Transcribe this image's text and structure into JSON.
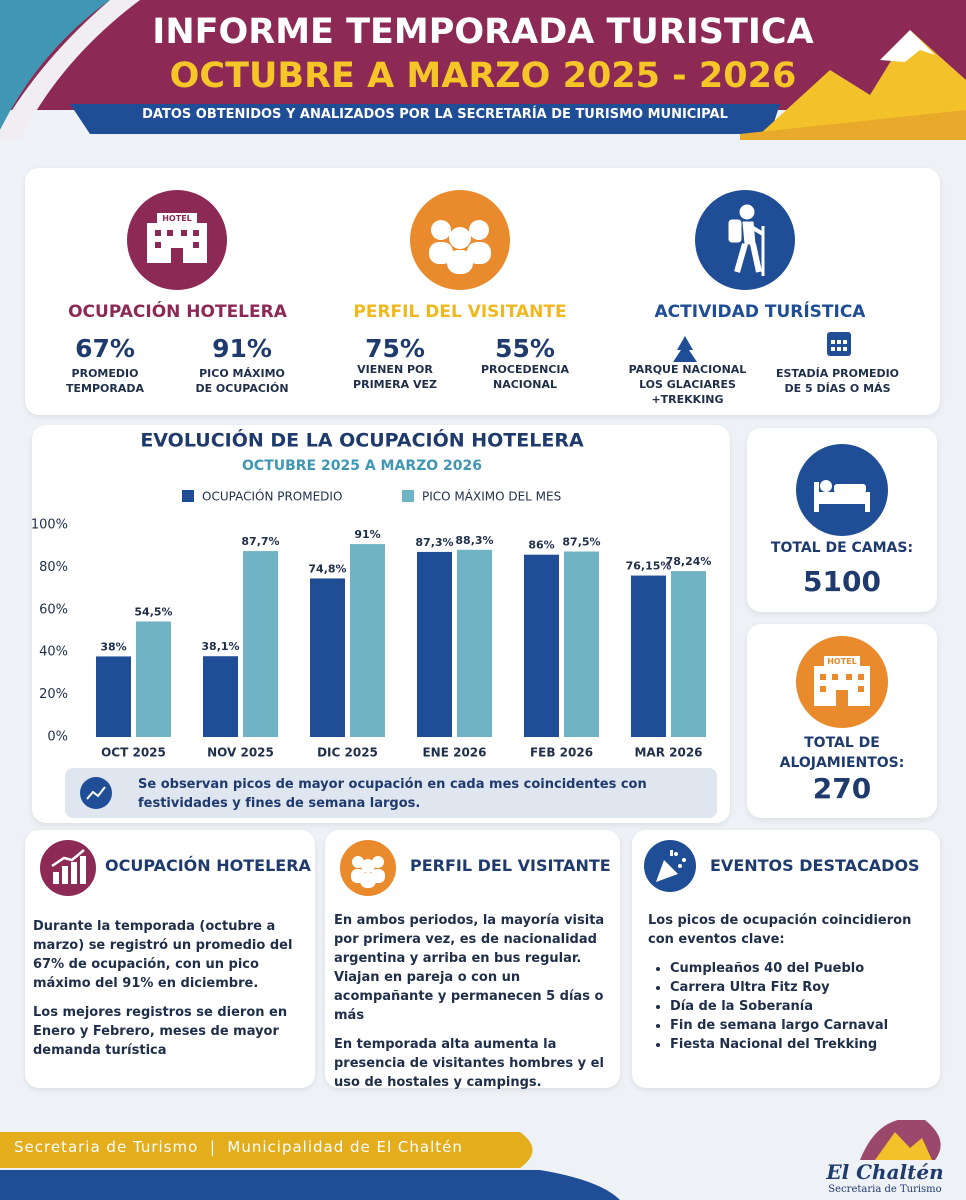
{
  "header": {
    "title": "INFORME TEMPORADA TURISTICA",
    "subtitle": "OCTUBRE A MARZO 2025 - 2026",
    "source": "DATOS OBTENIDOS Y ANALIZADOS POR LA SECRETARÍA DE TURISMO MUNICIPAL"
  },
  "icon_hotel_label": "HOTEL",
  "summary": [
    {
      "title": "OCUPACIÓN HOTELERA",
      "stats": [
        {
          "value": "67%",
          "label": [
            "PROMEDIO",
            "TEMPORADA"
          ]
        },
        {
          "value": "91%",
          "label": [
            "PICO MÁXIMO",
            "DE OCUPACIÓN"
          ]
        }
      ]
    },
    {
      "title": "PERFIL DEL VISITANTE",
      "stats": [
        {
          "value": "75%",
          "label": [
            "VIENEN POR",
            "PRIMERA VEZ"
          ]
        },
        {
          "value": "55%",
          "label": [
            "PROCEDENCIA",
            "NACIONAL"
          ]
        }
      ]
    },
    {
      "title": "ACTIVIDAD TURÍSTICA",
      "items": [
        [
          "PARQUE NACIONAL",
          "LOS GLACIARES",
          "+TREKKING"
        ],
        [
          "ESTADÍA PROMEDIO",
          "DE 5 DÍAS O MÁS"
        ]
      ]
    }
  ],
  "chart_data": {
    "type": "bar",
    "title": "EVOLUCIÓN DE LA OCUPACIÓN HOTELERA",
    "subtitle": "OCTUBRE 2025 A MARZO 2026",
    "categories": [
      "OCT 2025",
      "NOV 2025",
      "DIC 2025",
      "ENE 2026",
      "FEB 2026",
      "MAR 2026"
    ],
    "series": [
      {
        "name": "OCUPACIÓN PROMEDIO",
        "color": "#1f4e96",
        "values": [
          38,
          38.1,
          74.8,
          87.3,
          86,
          76.15
        ],
        "value_labels": [
          "38%",
          "38,1%",
          "74,8%",
          "87,3%",
          "86%",
          "76,15%"
        ]
      },
      {
        "name": "PICO MÁXIMO DEL MES",
        "color": "#6fb3c4",
        "values": [
          54.5,
          87.7,
          91,
          88.3,
          87.5,
          78.24
        ],
        "value_labels": [
          "54,5%",
          "87,7%",
          "91%",
          "88,3%",
          "87,5%",
          "78,24%"
        ]
      }
    ],
    "ylim": [
      0,
      100
    ],
    "yticks": [
      {
        "value": 0,
        "label": "0%"
      },
      {
        "value": 20,
        "label": "20%"
      },
      {
        "value": 40,
        "label": "40%"
      },
      {
        "value": 60,
        "label": "60%"
      },
      {
        "value": 80,
        "label": "80%"
      },
      {
        "value": 100,
        "label": "100%"
      }
    ],
    "grid": false,
    "note": "Se observan picos de mayor ocupación en cada mes coincidentes con festividades y fines de semana largos."
  },
  "side_stats": [
    {
      "label": "TOTAL DE CAMAS:",
      "value": "5100"
    },
    {
      "label": "TOTAL DE ALOJAMIENTOS:",
      "value": "270"
    }
  ],
  "cards": [
    {
      "title": "OCUPACIÓN HOTELERA",
      "paragraphs": [
        "Durante la temporada (octubre a marzo) se registró un promedio del 67% de ocupación, con un pico máximo del 91% en diciembre.",
        "Los mejores registros se dieron en Enero y Febrero, meses de mayor demanda turística"
      ]
    },
    {
      "title": "PERFIL DEL VISITANTE",
      "paragraphs": [
        "En ambos periodos, la mayoría visita por primera vez, es de nacionalidad argentina y arriba en bus regular. Viajan en pareja o con un acompañante y permanecen 5 días o más",
        "En temporada alta aumenta la presencia de visitantes hombres y el uso de hostales y campings."
      ]
    },
    {
      "title": "EVENTOS DESTACADOS",
      "paragraphs": [
        "Los picos de ocupación coincidieron con eventos clave:"
      ],
      "list": [
        "Cumpleaños 40 del Pueblo",
        "Carrera Ultra Fitz Roy",
        "Día de la Soberanía",
        "Fin de semana largo Carnaval",
        "Fiesta Nacional del Trekking"
      ]
    }
  ],
  "footer": {
    "text": "Secretaria de Turismo  |  Municipalidad de El Chaltén",
    "logo_name": "El Chaltén",
    "logo_sub": "Secretaria de Turismo"
  }
}
